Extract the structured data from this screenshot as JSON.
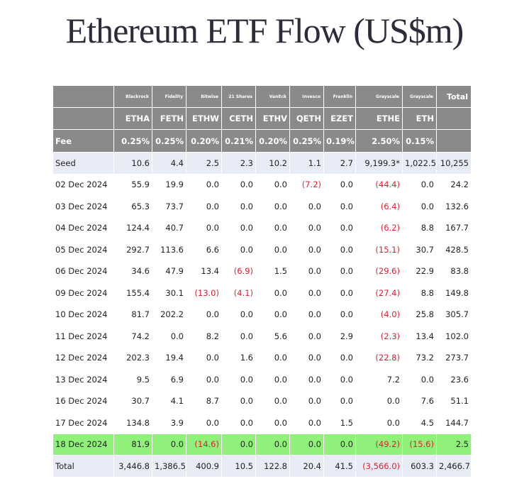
{
  "title": "Ethereum ETF Flow (US$m)",
  "chart_data": {
    "type": "table",
    "issuers": [
      "Blackrock",
      "Fidelity",
      "Bitwise",
      "21 Shares",
      "VanEck",
      "Invesco",
      "Franklin",
      "Grayscale",
      "Grayscale"
    ],
    "total_header": "Total",
    "tickers": [
      "ETHA",
      "FETH",
      "ETHW",
      "CETH",
      "ETHV",
      "QETH",
      "EZET",
      "ETHE",
      "ETH"
    ],
    "fee_label": "Fee",
    "fees": [
      "0.25%",
      "0.25%",
      "0.20%",
      "0.21%",
      "0.20%",
      "0.25%",
      "0.19%",
      "2.50%",
      "0.15%"
    ],
    "rows": [
      {
        "label": "Seed",
        "values": [
          "10.6",
          "4.4",
          "2.5",
          "2.3",
          "10.2",
          "1.1",
          "2.7",
          "9,199.3*",
          "1,022.5*",
          "10,255"
        ],
        "style": "seed"
      },
      {
        "label": "02 Dec 2024",
        "values": [
          "55.9",
          "19.9",
          "0.0",
          "0.0",
          "0.0",
          "(7.2)",
          "0.0",
          "(44.4)",
          "0.0",
          "24.2"
        ]
      },
      {
        "label": "03 Dec 2024",
        "values": [
          "65.3",
          "73.7",
          "0.0",
          "0.0",
          "0.0",
          "0.0",
          "0.0",
          "(6.4)",
          "0.0",
          "132.6"
        ]
      },
      {
        "label": "04 Dec 2024",
        "values": [
          "124.4",
          "40.7",
          "0.0",
          "0.0",
          "0.0",
          "0.0",
          "0.0",
          "(6.2)",
          "8.8",
          "167.7"
        ]
      },
      {
        "label": "05 Dec 2024",
        "values": [
          "292.7",
          "113.6",
          "6.6",
          "0.0",
          "0.0",
          "0.0",
          "0.0",
          "(15.1)",
          "30.7",
          "428.5"
        ]
      },
      {
        "label": "06 Dec 2024",
        "values": [
          "34.6",
          "47.9",
          "13.4",
          "(6.9)",
          "1.5",
          "0.0",
          "0.0",
          "(29.6)",
          "22.9",
          "83.8"
        ]
      },
      {
        "label": "09 Dec 2024",
        "values": [
          "155.4",
          "30.1",
          "(13.0)",
          "(4.1)",
          "0.0",
          "0.0",
          "0.0",
          "(27.4)",
          "8.8",
          "149.8"
        ]
      },
      {
        "label": "10 Dec 2024",
        "values": [
          "81.7",
          "202.2",
          "0.0",
          "0.0",
          "0.0",
          "0.0",
          "0.0",
          "(4.0)",
          "25.8",
          "305.7"
        ]
      },
      {
        "label": "11 Dec 2024",
        "values": [
          "74.2",
          "0.0",
          "8.2",
          "0.0",
          "5.6",
          "0.0",
          "2.9",
          "(2.3)",
          "13.4",
          "102.0"
        ]
      },
      {
        "label": "12 Dec 2024",
        "values": [
          "202.3",
          "19.4",
          "0.0",
          "1.6",
          "0.0",
          "0.0",
          "0.0",
          "(22.8)",
          "73.2",
          "273.7"
        ]
      },
      {
        "label": "13 Dec 2024",
        "values": [
          "9.5",
          "6.9",
          "0.0",
          "0.0",
          "0.0",
          "0.0",
          "0.0",
          "7.2",
          "0.0",
          "23.6"
        ]
      },
      {
        "label": "16 Dec 2024",
        "values": [
          "30.7",
          "4.1",
          "8.7",
          "0.0",
          "0.0",
          "0.0",
          "0.0",
          "0.0",
          "7.6",
          "51.1"
        ]
      },
      {
        "label": "17 Dec 2024",
        "values": [
          "134.8",
          "3.9",
          "0.0",
          "0.0",
          "0.0",
          "0.0",
          "1.5",
          "0.0",
          "4.5",
          "144.7"
        ]
      },
      {
        "label": "18 Dec 2024",
        "values": [
          "81.9",
          "0.0",
          "(14.6)",
          "0.0",
          "0.0",
          "0.0",
          "0.0",
          "(49.2)",
          "(15.6)",
          "2.5"
        ],
        "style": "highlight"
      },
      {
        "label": "Total",
        "values": [
          "3,446.8",
          "1,386.5",
          "400.9",
          "10.5",
          "122.8",
          "20.4",
          "41.5",
          "(3,566.0)",
          "603.3",
          "2,466.7"
        ],
        "style": "total"
      }
    ]
  },
  "colors": {
    "header_bg": "#8a8a8a",
    "row_tint": "#e8ecf7",
    "highlight": "#8ff07a",
    "negative": "#e0202e",
    "title": "#2b2d3a"
  }
}
